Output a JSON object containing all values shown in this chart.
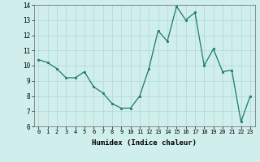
{
  "x": [
    0,
    1,
    2,
    3,
    4,
    5,
    6,
    7,
    8,
    9,
    10,
    11,
    12,
    13,
    14,
    15,
    16,
    17,
    18,
    19,
    20,
    21,
    22,
    23
  ],
  "y": [
    10.4,
    10.2,
    9.8,
    9.2,
    9.2,
    9.6,
    8.6,
    8.2,
    7.5,
    7.2,
    7.2,
    8.0,
    9.8,
    12.3,
    11.6,
    13.9,
    13.0,
    13.5,
    10.0,
    11.1,
    9.6,
    9.7,
    6.3,
    8.0
  ],
  "xlabel": "Humidex (Indice chaleur)",
  "ylim": [
    6,
    14
  ],
  "yticks": [
    6,
    7,
    8,
    9,
    10,
    11,
    12,
    13,
    14
  ],
  "xticks": [
    0,
    1,
    2,
    3,
    4,
    5,
    6,
    7,
    8,
    9,
    10,
    11,
    12,
    13,
    14,
    15,
    16,
    17,
    18,
    19,
    20,
    21,
    22,
    23
  ],
  "line_color": "#1a7a6e",
  "marker_color": "#1a7a6e",
  "bg_color": "#d0eeeb",
  "grid_color": "#b0d8d4",
  "axes_color": "#666666"
}
